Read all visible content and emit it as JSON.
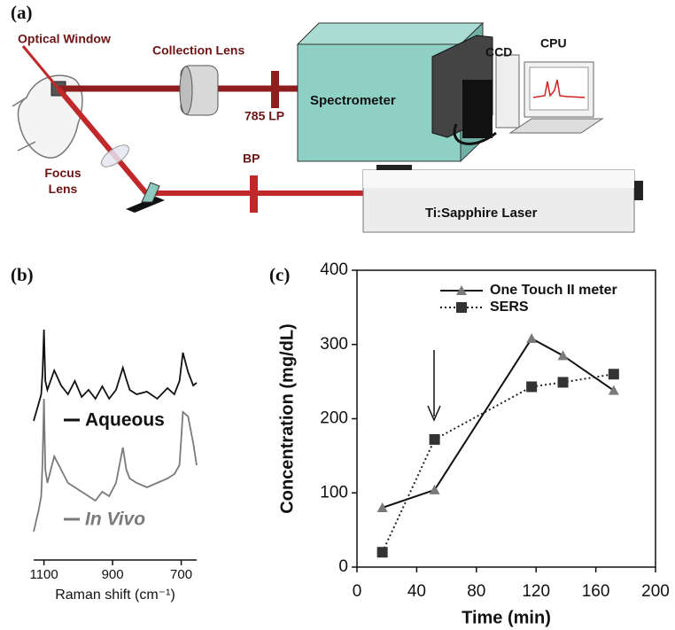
{
  "panel_labels": [
    "(a)",
    "(b)",
    "(c)"
  ],
  "diagram": {
    "labels": [
      "Optical Window",
      "Collection Lens",
      "785 LP",
      "Spectrometer",
      "CCD",
      "CPU",
      "Focus Lens",
      "BP",
      "Ti:Sapphire Laser"
    ]
  },
  "chart_data": [
    {
      "type": "line",
      "xlabel": "Raman shift (cm⁻¹)",
      "x": [
        1130,
        1115,
        1108,
        1104,
        1100,
        1096,
        1090,
        1070,
        1050,
        1030,
        1010,
        990,
        970,
        950,
        930,
        910,
        890,
        870,
        860,
        850,
        830,
        800,
        770,
        740,
        720,
        705,
        695,
        680,
        665,
        655
      ],
      "xlim": [
        1130,
        655
      ],
      "xticks": [
        1100,
        900,
        700
      ],
      "ylim": [
        0,
        100
      ],
      "series": [
        {
          "name": "Aqueous",
          "color": "#111111",
          "values": [
            54,
            62,
            66,
            76,
            95.2,
            72,
            68,
            76.8,
            70,
            66,
            72,
            64.8,
            68,
            64,
            69.6,
            64,
            68,
            78,
            72.8,
            68,
            66,
            67.2,
            64,
            68.8,
            66,
            72,
            84.8,
            76,
            70,
            71.2
          ]
        },
        {
          "name": "In Vivo",
          "color": "#7a7a7a",
          "values": [
            4,
            14,
            20,
            36,
            64,
            32,
            26,
            38,
            32,
            26,
            24,
            22,
            20,
            18,
            22,
            20,
            26,
            42,
            32,
            28,
            26,
            24,
            26,
            28,
            30,
            34,
            58,
            56,
            44,
            34
          ]
        }
      ]
    },
    {
      "type": "line",
      "xlabel": "Time (min)",
      "ylabel": "Concentration (mg/dL)",
      "x": [
        17,
        52,
        117,
        138,
        172
      ],
      "xlim": [
        0,
        200
      ],
      "xticks": [
        0,
        40,
        80,
        120,
        160,
        200
      ],
      "ylim": [
        0,
        400
      ],
      "yticks": [
        0,
        100,
        200,
        300,
        400
      ],
      "series": [
        {
          "name": "One Touch II meter",
          "color": "#7a7a7a",
          "marker": "triangle",
          "linestyle": "solid",
          "values": [
            80,
            104,
            308,
            285,
            238
          ]
        },
        {
          "name": "SERS",
          "color": "#333333",
          "marker": "square",
          "linestyle": "dotted",
          "values": [
            20,
            172,
            243,
            249,
            260
          ]
        }
      ]
    }
  ]
}
